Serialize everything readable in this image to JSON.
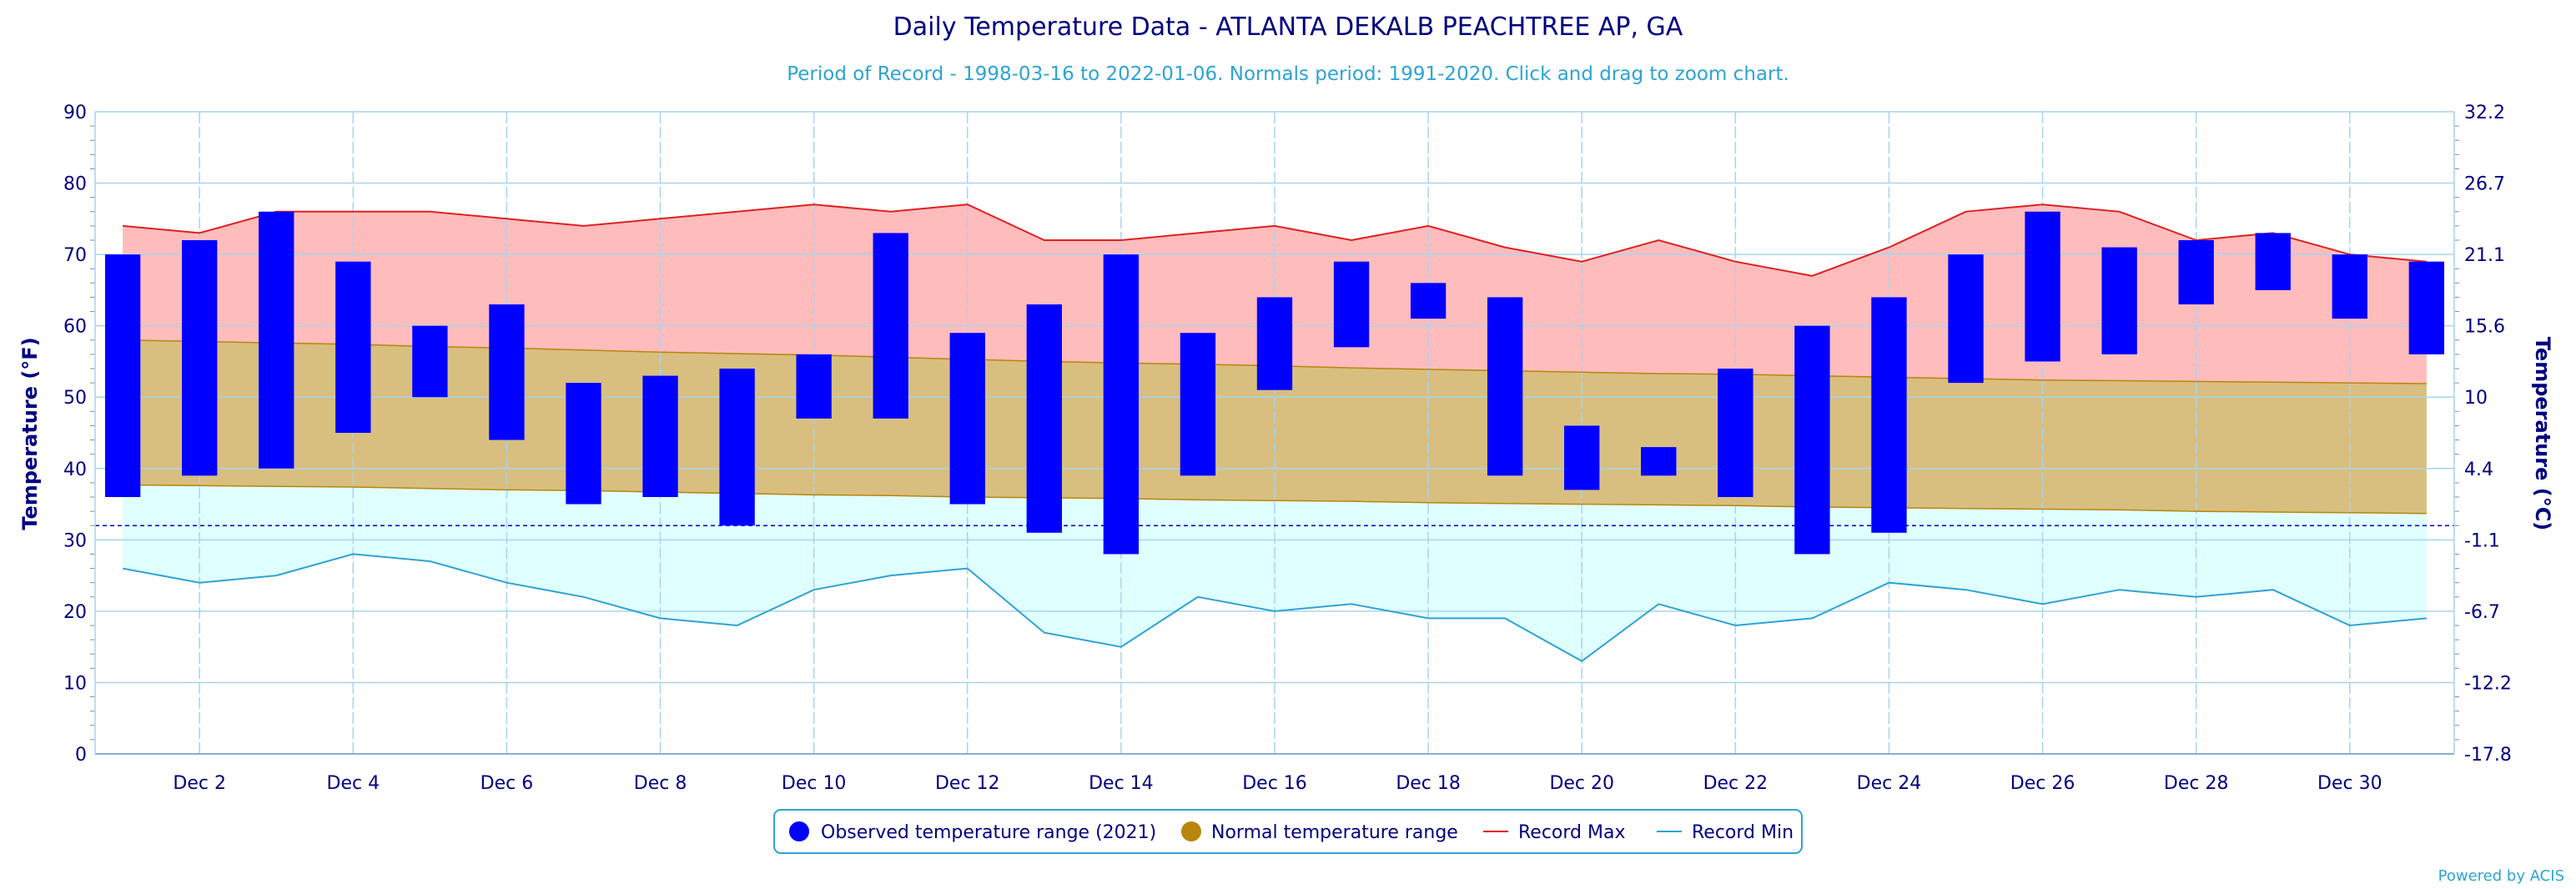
{
  "chart_data": {
    "type": "bar",
    "title": "Daily Temperature Data - ATLANTA DEKALB PEACHTREE AP, GA",
    "subtitle": "Period of Record - 1998-03-16 to 2022-01-06. Normals period: 1991-2020. Click and drag to zoom chart.",
    "ylabel": "Temperature (°F)",
    "ylabel_right": "Temperature (°C)",
    "ylim": [
      0,
      90
    ],
    "yticks": [
      0,
      10,
      20,
      30,
      40,
      50,
      60,
      70,
      80,
      90
    ],
    "yticks_right": [
      "-17.8",
      "-12.2",
      "-6.7",
      "-1.1",
      "4.4",
      "10",
      "15.6",
      "21.1",
      "26.7",
      "32.2"
    ],
    "x_days": [
      1,
      2,
      3,
      4,
      5,
      6,
      7,
      8,
      9,
      10,
      11,
      12,
      13,
      14,
      15,
      16,
      17,
      18,
      19,
      20,
      21,
      22,
      23,
      24,
      25,
      26,
      27,
      28,
      29,
      30,
      31
    ],
    "xticks": [
      {
        "day": 2,
        "label": "Dec 2"
      },
      {
        "day": 4,
        "label": "Dec 4"
      },
      {
        "day": 6,
        "label": "Dec 6"
      },
      {
        "day": 8,
        "label": "Dec 8"
      },
      {
        "day": 10,
        "label": "Dec 10"
      },
      {
        "day": 12,
        "label": "Dec 12"
      },
      {
        "day": 14,
        "label": "Dec 14"
      },
      {
        "day": 16,
        "label": "Dec 16"
      },
      {
        "day": 18,
        "label": "Dec 18"
      },
      {
        "day": 20,
        "label": "Dec 20"
      },
      {
        "day": 22,
        "label": "Dec 22"
      },
      {
        "day": 24,
        "label": "Dec 24"
      },
      {
        "day": 26,
        "label": "Dec 26"
      },
      {
        "day": 28,
        "label": "Dec 28"
      },
      {
        "day": 30,
        "label": "Dec 30"
      }
    ],
    "freezing_line": 32,
    "series": [
      {
        "name": "Observed temperature range (2021)",
        "type": "columnrange",
        "color": "#0000ff",
        "low": [
          36,
          39,
          40,
          45,
          50,
          44,
          35,
          36,
          32,
          47,
          47,
          35,
          31,
          28,
          39,
          51,
          57,
          61,
          39,
          37,
          39,
          36,
          28,
          31,
          52,
          55,
          56,
          63,
          65,
          61,
          56
        ],
        "high": [
          70,
          72,
          76,
          69,
          60,
          63,
          52,
          53,
          54,
          56,
          73,
          59,
          63,
          70,
          59,
          64,
          69,
          66,
          64,
          46,
          43,
          54,
          60,
          64,
          70,
          76,
          71,
          72,
          73,
          70,
          69
        ]
      },
      {
        "name": "Normal temperature range",
        "type": "arearange",
        "color": "#b8860b",
        "fill": "#d8bf80",
        "low": [
          37.7,
          37.6,
          37.5,
          37.4,
          37.2,
          37.0,
          36.9,
          36.7,
          36.5,
          36.3,
          36.2,
          36.0,
          35.9,
          35.8,
          35.6,
          35.5,
          35.4,
          35.2,
          35.1,
          35.0,
          34.9,
          34.8,
          34.6,
          34.5,
          34.4,
          34.3,
          34.2,
          34.0,
          33.9,
          33.8,
          33.7
        ],
        "high": [
          58.0,
          57.8,
          57.6,
          57.4,
          57.1,
          56.9,
          56.6,
          56.3,
          56.1,
          55.9,
          55.6,
          55.3,
          55.0,
          54.8,
          54.6,
          54.4,
          54.1,
          53.9,
          53.7,
          53.5,
          53.3,
          53.2,
          53.0,
          52.8,
          52.6,
          52.4,
          52.3,
          52.2,
          52.1,
          52.0,
          51.9
        ]
      },
      {
        "name": "Record Max",
        "type": "line",
        "color": "#e02020",
        "fill": "#ffbcbc",
        "values": [
          74,
          73,
          76,
          76,
          76,
          75,
          74,
          75,
          76,
          77,
          76,
          77,
          72,
          72,
          73,
          74,
          72,
          74,
          71,
          69,
          72,
          69,
          67,
          71,
          76,
          77,
          76,
          72,
          73,
          70,
          69
        ]
      },
      {
        "name": "Record Min",
        "type": "line",
        "color": "#2ea3d4",
        "fill": "#e0ffff",
        "values": [
          26,
          24,
          25,
          28,
          27,
          24,
          22,
          19,
          18,
          23,
          25,
          26,
          17,
          15,
          22,
          20,
          21,
          19,
          19,
          13,
          21,
          18,
          19,
          24,
          23,
          21,
          23,
          22,
          23,
          18,
          19
        ]
      }
    ],
    "legend": {
      "placement": "bottom-center"
    },
    "grid": true
  },
  "credit": "Powered by ACIS"
}
